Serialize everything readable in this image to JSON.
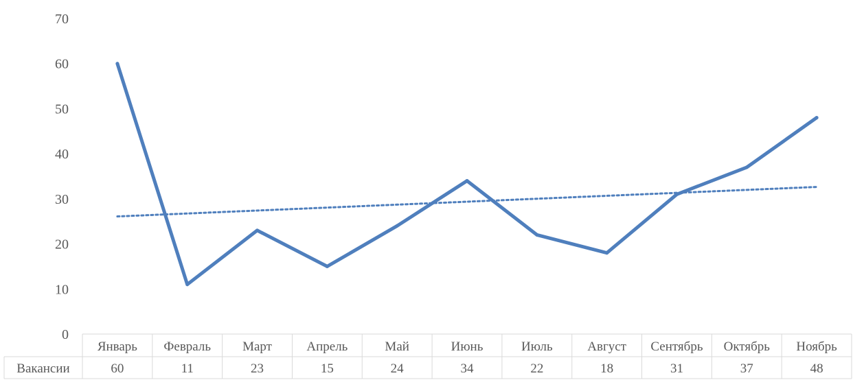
{
  "chart_data": {
    "type": "line",
    "categories": [
      "Январь",
      "Февраль",
      "Март",
      "Апрель",
      "Май",
      "Июнь",
      "Июль",
      "Август",
      "Сентябрь",
      "Октябрь",
      "Ноябрь"
    ],
    "series": [
      {
        "name": "Вакансии",
        "values": [
          60,
          11,
          23,
          15,
          24,
          34,
          22,
          18,
          31,
          37,
          48
        ],
        "color": "#4f7fbd"
      }
    ],
    "trendline": {
      "type": "linear",
      "style": "dotted",
      "color": "#4f7fbd"
    },
    "ylim": [
      0,
      70
    ],
    "yticks": [
      0,
      10,
      20,
      30,
      40,
      50,
      60,
      70
    ],
    "grid": false,
    "data_table": true
  }
}
